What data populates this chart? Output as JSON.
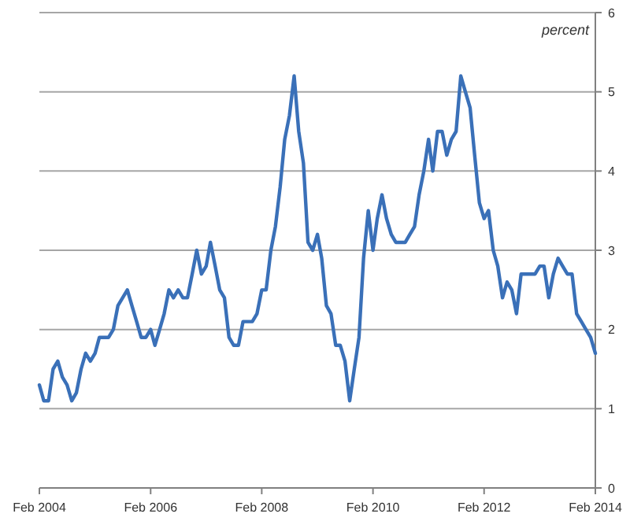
{
  "chart_data": {
    "type": "line",
    "ylabel": "percent",
    "x": [
      "2004-02",
      "2004-03",
      "2004-04",
      "2004-05",
      "2004-06",
      "2004-07",
      "2004-08",
      "2004-09",
      "2004-10",
      "2004-11",
      "2004-12",
      "2005-01",
      "2005-02",
      "2005-03",
      "2005-04",
      "2005-05",
      "2005-06",
      "2005-07",
      "2005-08",
      "2005-09",
      "2005-10",
      "2005-11",
      "2005-12",
      "2006-01",
      "2006-02",
      "2006-03",
      "2006-04",
      "2006-05",
      "2006-06",
      "2006-07",
      "2006-08",
      "2006-09",
      "2006-10",
      "2006-11",
      "2006-12",
      "2007-01",
      "2007-02",
      "2007-03",
      "2007-04",
      "2007-05",
      "2007-06",
      "2007-07",
      "2007-08",
      "2007-09",
      "2007-10",
      "2007-11",
      "2007-12",
      "2008-01",
      "2008-02",
      "2008-03",
      "2008-04",
      "2008-05",
      "2008-06",
      "2008-07",
      "2008-08",
      "2008-09",
      "2008-10",
      "2008-11",
      "2008-12",
      "2009-01",
      "2009-02",
      "2009-03",
      "2009-04",
      "2009-05",
      "2009-06",
      "2009-07",
      "2009-08",
      "2009-09",
      "2009-10",
      "2009-11",
      "2009-12",
      "2010-01",
      "2010-02",
      "2010-03",
      "2010-04",
      "2010-05",
      "2010-06",
      "2010-07",
      "2010-08",
      "2010-09",
      "2010-10",
      "2010-11",
      "2010-12",
      "2011-01",
      "2011-02",
      "2011-03",
      "2011-04",
      "2011-05",
      "2011-06",
      "2011-07",
      "2011-08",
      "2011-09",
      "2011-10",
      "2011-11",
      "2011-12",
      "2012-01",
      "2012-02",
      "2012-03",
      "2012-04",
      "2012-05",
      "2012-06",
      "2012-07",
      "2012-08",
      "2012-09",
      "2012-10",
      "2012-11",
      "2012-12",
      "2013-01",
      "2013-02",
      "2013-03",
      "2013-04",
      "2013-05",
      "2013-06",
      "2013-07",
      "2013-08",
      "2013-09",
      "2013-10",
      "2013-11",
      "2013-12",
      "2014-01",
      "2014-02"
    ],
    "series": [
      {
        "color": "#3a70b8",
        "values": [
          1.3,
          1.1,
          1.1,
          1.5,
          1.6,
          1.4,
          1.3,
          1.1,
          1.2,
          1.5,
          1.7,
          1.6,
          1.7,
          1.9,
          1.9,
          1.9,
          2.0,
          2.3,
          2.4,
          2.5,
          2.3,
          2.1,
          1.9,
          1.9,
          2.0,
          1.8,
          2.0,
          2.2,
          2.5,
          2.4,
          2.5,
          2.4,
          2.4,
          2.7,
          3.0,
          2.7,
          2.8,
          3.1,
          2.8,
          2.5,
          2.4,
          1.9,
          1.8,
          1.8,
          2.1,
          2.1,
          2.1,
          2.2,
          2.5,
          2.5,
          3.0,
          3.3,
          3.8,
          4.4,
          4.7,
          5.2,
          4.5,
          4.1,
          3.1,
          3.0,
          3.2,
          2.9,
          2.3,
          2.2,
          1.8,
          1.8,
          1.6,
          1.1,
          1.5,
          1.9,
          2.9,
          3.5,
          3.0,
          3.4,
          3.7,
          3.4,
          3.2,
          3.1,
          3.1,
          3.1,
          3.2,
          3.3,
          3.7,
          4.0,
          4.4,
          4.0,
          4.5,
          4.5,
          4.2,
          4.4,
          4.5,
          5.2,
          5.0,
          4.8,
          4.2,
          3.6,
          3.4,
          3.5,
          3.0,
          2.8,
          2.4,
          2.6,
          2.5,
          2.2,
          2.7,
          2.7,
          2.7,
          2.7,
          2.8,
          2.8,
          2.4,
          2.7,
          2.9,
          2.8,
          2.7,
          2.7,
          2.2,
          2.1,
          2.0,
          1.9,
          1.7
        ]
      }
    ],
    "xlim": [
      "2004-02",
      "2014-02"
    ],
    "xticks": [
      {
        "value": "2004-02",
        "label": "Feb 2004"
      },
      {
        "value": "2006-02",
        "label": "Feb 2006"
      },
      {
        "value": "2008-02",
        "label": "Feb 2008"
      },
      {
        "value": "2010-02",
        "label": "Feb 2010"
      },
      {
        "value": "2012-02",
        "label": "Feb 2012"
      },
      {
        "value": "2014-02",
        "label": "Feb 2014"
      }
    ],
    "ylim": [
      0,
      6
    ],
    "yticks": [
      0,
      1,
      2,
      3,
      4,
      5,
      6
    ],
    "grid": "y",
    "marker": "none",
    "line_style": "solid"
  }
}
